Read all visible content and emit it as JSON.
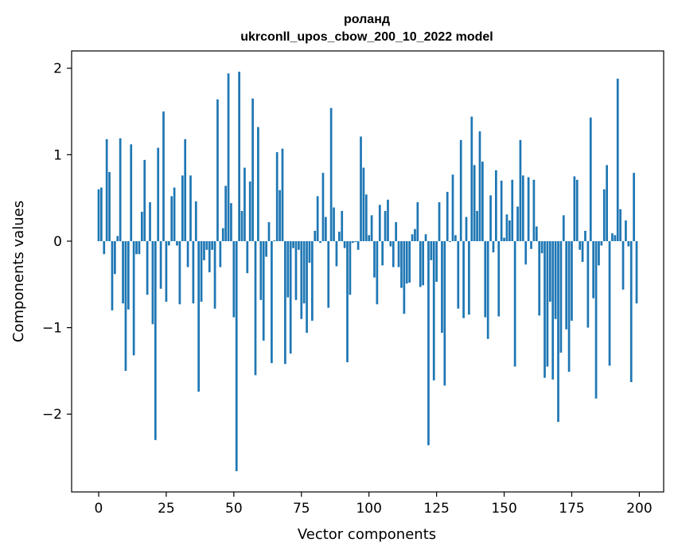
{
  "chart_data": {
    "type": "bar",
    "title": "роланд",
    "subtitle": "ukrconll_upos_cbow_200_10_2022 model",
    "xlabel": "Vector components",
    "ylabel": "Components values",
    "xlim": [
      -10,
      209
    ],
    "ylim": [
      -2.9,
      2.2
    ],
    "x_ticks": [
      0,
      25,
      50,
      75,
      100,
      125,
      150,
      175,
      200
    ],
    "y_ticks": [
      -2,
      -1,
      0,
      1,
      2
    ],
    "y_tick_labels": [
      "−2",
      "−1",
      "0",
      "1",
      "2"
    ],
    "bar_color": "#1f77b4",
    "grid": false,
    "legend": "none",
    "x": [
      0,
      1,
      2,
      3,
      4,
      5,
      6,
      7,
      8,
      9,
      10,
      11,
      12,
      13,
      14,
      15,
      16,
      17,
      18,
      19,
      20,
      21,
      22,
      23,
      24,
      25,
      26,
      27,
      28,
      29,
      30,
      31,
      32,
      33,
      34,
      35,
      36,
      37,
      38,
      39,
      40,
      41,
      42,
      43,
      44,
      45,
      46,
      47,
      48,
      49,
      50,
      51,
      52,
      53,
      54,
      55,
      56,
      57,
      58,
      59,
      60,
      61,
      62,
      63,
      64,
      65,
      66,
      67,
      68,
      69,
      70,
      71,
      72,
      73,
      74,
      75,
      76,
      77,
      78,
      79,
      80,
      81,
      82,
      83,
      84,
      85,
      86,
      87,
      88,
      89,
      90,
      91,
      92,
      93,
      94,
      95,
      96,
      97,
      98,
      99,
      100,
      101,
      102,
      103,
      104,
      105,
      106,
      107,
      108,
      109,
      110,
      111,
      112,
      113,
      114,
      115,
      116,
      117,
      118,
      119,
      120,
      121,
      122,
      123,
      124,
      125,
      126,
      127,
      128,
      129,
      130,
      131,
      132,
      133,
      134,
      135,
      136,
      137,
      138,
      139,
      140,
      141,
      142,
      143,
      144,
      145,
      146,
      147,
      148,
      149,
      150,
      151,
      152,
      153,
      154,
      155,
      156,
      157,
      158,
      159,
      160,
      161,
      162,
      163,
      164,
      165,
      166,
      167,
      168,
      169,
      170,
      171,
      172,
      173,
      174,
      175,
      176,
      177,
      178,
      179,
      180,
      181,
      182,
      183,
      184,
      185,
      186,
      187,
      188,
      189,
      190,
      191,
      192,
      193,
      194,
      195,
      196,
      197,
      198,
      199
    ],
    "values": [
      0.6,
      0.62,
      -0.15,
      1.18,
      0.8,
      -0.8,
      -0.38,
      0.06,
      1.19,
      -0.72,
      -1.5,
      -0.79,
      1.12,
      -1.32,
      -0.15,
      -0.15,
      0.34,
      0.94,
      -0.62,
      0.45,
      -0.96,
      -2.3,
      1.08,
      -0.55,
      1.5,
      -0.7,
      -0.05,
      0.52,
      0.62,
      -0.05,
      -0.73,
      0.76,
      1.18,
      -0.3,
      0.76,
      -0.72,
      0.46,
      -1.74,
      -0.7,
      -0.22,
      -0.1,
      -0.36,
      -0.1,
      -0.78,
      1.64,
      -0.3,
      0.15,
      0.64,
      1.94,
      0.44,
      -0.88,
      -2.66,
      1.96,
      0.35,
      0.85,
      -0.37,
      0.69,
      1.65,
      -1.55,
      1.32,
      -0.68,
      -1.15,
      -0.18,
      0.22,
      -1.41,
      0.01,
      1.03,
      0.59,
      1.07,
      -1.42,
      -0.65,
      -1.3,
      -0.08,
      -0.68,
      -0.1,
      -0.9,
      -0.72,
      -1.06,
      -0.25,
      -0.92,
      0.12,
      0.52,
      -0.02,
      0.79,
      0.28,
      -0.77,
      1.54,
      0.39,
      -0.29,
      0.11,
      0.35,
      -0.08,
      -1.4,
      -0.62,
      -0.02,
      -0.01,
      -0.1,
      1.21,
      0.85,
      0.54,
      0.07,
      0.3,
      -0.42,
      -0.73,
      0.42,
      -0.28,
      0.35,
      0.48,
      -0.06,
      -0.3,
      0.22,
      -0.3,
      -0.54,
      -0.84,
      -0.49,
      -0.48,
      0.08,
      0.14,
      0.45,
      -0.53,
      -0.51,
      0.08,
      -2.36,
      -0.22,
      -1.61,
      -0.47,
      0.45,
      -1.06,
      -1.67,
      0.57,
      -0.01,
      0.77,
      0.07,
      -0.78,
      1.17,
      -0.89,
      0.28,
      -0.85,
      1.44,
      0.88,
      0.35,
      1.27,
      0.92,
      -0.88,
      -1.13,
      0.53,
      -0.13,
      0.82,
      -0.87,
      0.7,
      0.04,
      0.31,
      0.24,
      0.71,
      -1.45,
      0.4,
      1.17,
      0.76,
      -0.27,
      0.74,
      -0.09,
      0.71,
      0.17,
      -0.86,
      -0.14,
      -1.58,
      -1.45,
      -0.7,
      -1.6,
      -0.9,
      -2.09,
      -1.29,
      0.3,
      -1.02,
      -1.51,
      -0.92,
      0.75,
      0.71,
      -0.1,
      -0.24,
      0.12,
      -1.0,
      1.43,
      -0.66,
      -1.82,
      -0.28,
      -0.05,
      0.6,
      0.88,
      -1.44,
      0.09,
      0.07,
      1.88,
      0.37,
      -0.56,
      0.24,
      -0.06,
      -1.63,
      0.79,
      -0.72
    ]
  }
}
